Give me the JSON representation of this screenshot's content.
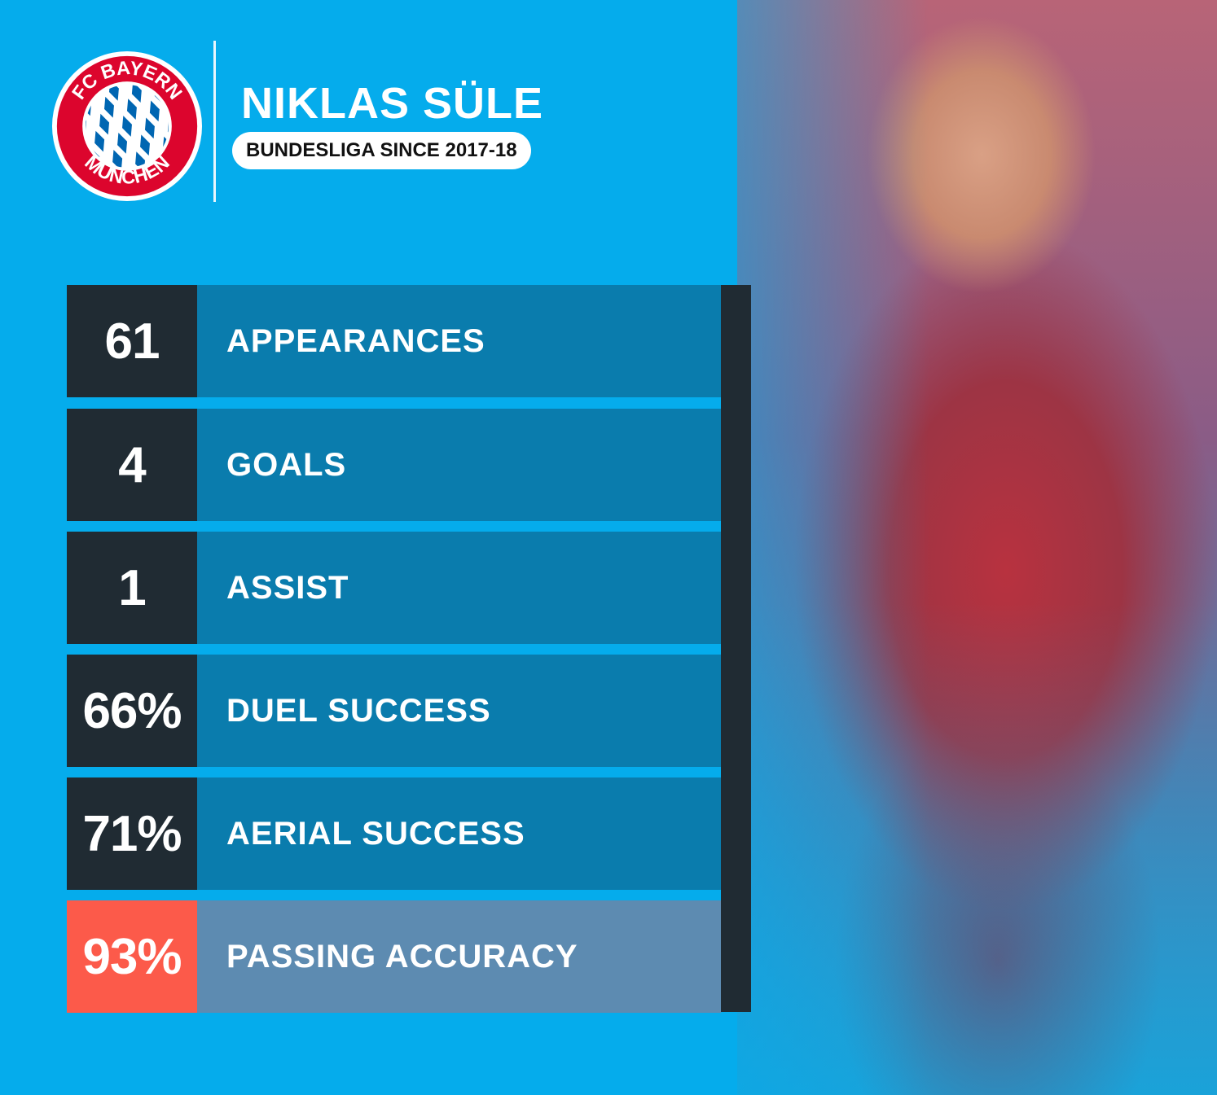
{
  "logo": {
    "top_text": "FC BAYERN",
    "bottom_text": "MÜNCHEN",
    "colors": {
      "ring": "#dc052d",
      "diamond": "#0066b2"
    }
  },
  "player": {
    "name": "NIKLAS SÜLE",
    "subtitle": "BUNDESLIGA SINCE 2017-18"
  },
  "stats": [
    {
      "value": "61",
      "label": "APPEARANCES"
    },
    {
      "value": "4",
      "label": "GOALS"
    },
    {
      "value": "1",
      "label": "ASSIST"
    },
    {
      "value": "66%",
      "label": "DUEL SUCCESS"
    },
    {
      "value": "71%",
      "label": "AERIAL SUCCESS"
    },
    {
      "value": "93%",
      "label": "PASSING ACCURACY",
      "highlight": true
    }
  ],
  "colors": {
    "background": "#05acec",
    "value_box": "#202b33",
    "label_box": "#0a7cad",
    "highlight_value": "#fc5a4a",
    "highlight_label": "#5d8bb1"
  }
}
